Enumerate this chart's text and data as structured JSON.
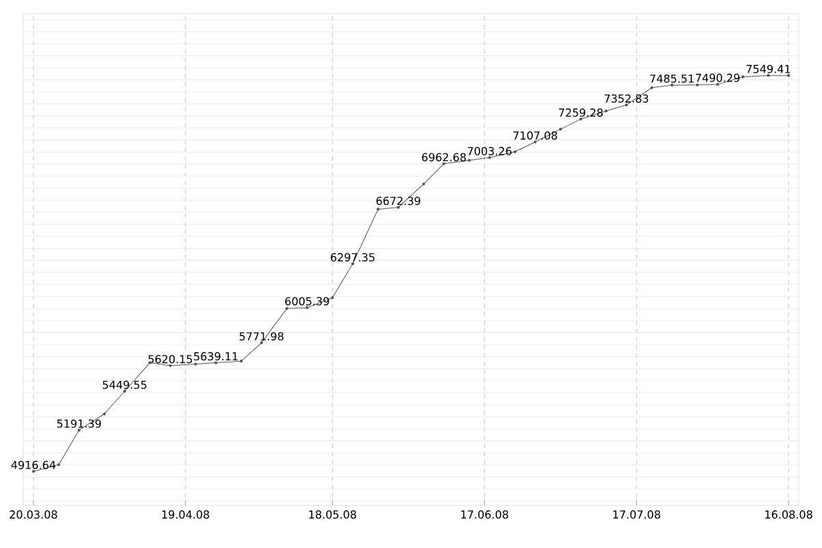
{
  "chart_data": {
    "type": "line",
    "color": "#555555",
    "marker": "circle",
    "line_style": "solid",
    "grid": true,
    "tick_labels": "x",
    "x": [
      "2008-03-20",
      "2008-03-25",
      "2008-03-29",
      "2008-04-03",
      "2008-04-07",
      "2008-04-12",
      "2008-04-16",
      "2008-04-21",
      "2008-04-25",
      "2008-04-30",
      "2008-05-04",
      "2008-05-09",
      "2008-05-13",
      "2008-05-18",
      "2008-05-22",
      "2008-05-27",
      "2008-05-31",
      "2008-06-05",
      "2008-06-09",
      "2008-06-14",
      "2008-06-18",
      "2008-06-23",
      "2008-06-27",
      "2008-07-02",
      "2008-07-06",
      "2008-07-11",
      "2008-07-15",
      "2008-07-20",
      "2008-07-24",
      "2008-07-29",
      "2008-08-02",
      "2008-08-07",
      "2008-08-12",
      "2008-08-16"
    ],
    "values": [
      4916.64,
      4962,
      5191.39,
      5299,
      5449.55,
      5640,
      5620.15,
      5630,
      5639.11,
      5650,
      5771.98,
      6000,
      6005.39,
      6072,
      6297.35,
      6660,
      6672.39,
      6828,
      6962.68,
      6985,
      7003.26,
      7042,
      7107.08,
      7192,
      7259.28,
      7313,
      7352.83,
      7468,
      7485.51,
      7486,
      7490.29,
      7540,
      7549.41,
      7549.41
    ],
    "value_labels": [
      "4916.64",
      null,
      "5191.39",
      null,
      "5449.55",
      null,
      "5620.15",
      null,
      "5639.11",
      null,
      "5771.98",
      null,
      "6005.39",
      null,
      "6297.35",
      null,
      "6672.39",
      null,
      "6962.68",
      null,
      "7003.26",
      null,
      "7107.08",
      null,
      "7259.28",
      null,
      "7352.83",
      null,
      "7485.51",
      null,
      "7490.29",
      null,
      "7549.41",
      null
    ],
    "xlim": [
      "2008-03-18",
      "2008-08-18"
    ],
    "xticks": [
      {
        "value": "2008-03-20",
        "label": "20.03.08"
      },
      {
        "value": "2008-04-19",
        "label": "19.04.08"
      },
      {
        "value": "2008-05-18",
        "label": "18.05.08"
      },
      {
        "value": "2008-06-17",
        "label": "17.06.08"
      },
      {
        "value": "2008-07-17",
        "label": "17.07.08"
      },
      {
        "value": "2008-08-16",
        "label": "16.08.08"
      }
    ],
    "ylim": [
      4690,
      7960
    ],
    "yticks": [
      {
        "value": 4720,
        "label": null
      },
      {
        "value": 4800,
        "label": null
      },
      {
        "value": 4880,
        "label": null
      },
      {
        "value": 4960,
        "label": null
      },
      {
        "value": 5040,
        "label": null
      },
      {
        "value": 5120,
        "label": null
      },
      {
        "value": 5200,
        "label": null
      },
      {
        "value": 5280,
        "label": null
      },
      {
        "value": 5360,
        "label": null
      },
      {
        "value": 5440,
        "label": null
      },
      {
        "value": 5520,
        "label": null
      },
      {
        "value": 5600,
        "label": null
      },
      {
        "value": 5680,
        "label": null
      },
      {
        "value": 5760,
        "label": null
      },
      {
        "value": 5840,
        "label": null
      },
      {
        "value": 5920,
        "label": null
      },
      {
        "value": 6000,
        "label": null
      },
      {
        "value": 6080,
        "label": null
      },
      {
        "value": 6160,
        "label": null
      },
      {
        "value": 6240,
        "label": null
      },
      {
        "value": 6320,
        "label": null
      },
      {
        "value": 6400,
        "label": null
      },
      {
        "value": 6480,
        "label": null
      },
      {
        "value": 6560,
        "label": null
      },
      {
        "value": 6640,
        "label": null
      },
      {
        "value": 6720,
        "label": null
      },
      {
        "value": 6800,
        "label": null
      },
      {
        "value": 6880,
        "label": null
      },
      {
        "value": 6960,
        "label": null
      },
      {
        "value": 7040,
        "label": null
      },
      {
        "value": 7120,
        "label": null
      },
      {
        "value": 7200,
        "label": null
      },
      {
        "value": 7280,
        "label": null
      },
      {
        "value": 7360,
        "label": null
      },
      {
        "value": 7440,
        "label": null
      },
      {
        "value": 7520,
        "label": null
      },
      {
        "value": 7600,
        "label": null
      },
      {
        "value": 7680,
        "label": null
      },
      {
        "value": 7760,
        "label": null
      },
      {
        "value": 7840,
        "label": null
      },
      {
        "value": 7920,
        "label": null
      }
    ]
  }
}
